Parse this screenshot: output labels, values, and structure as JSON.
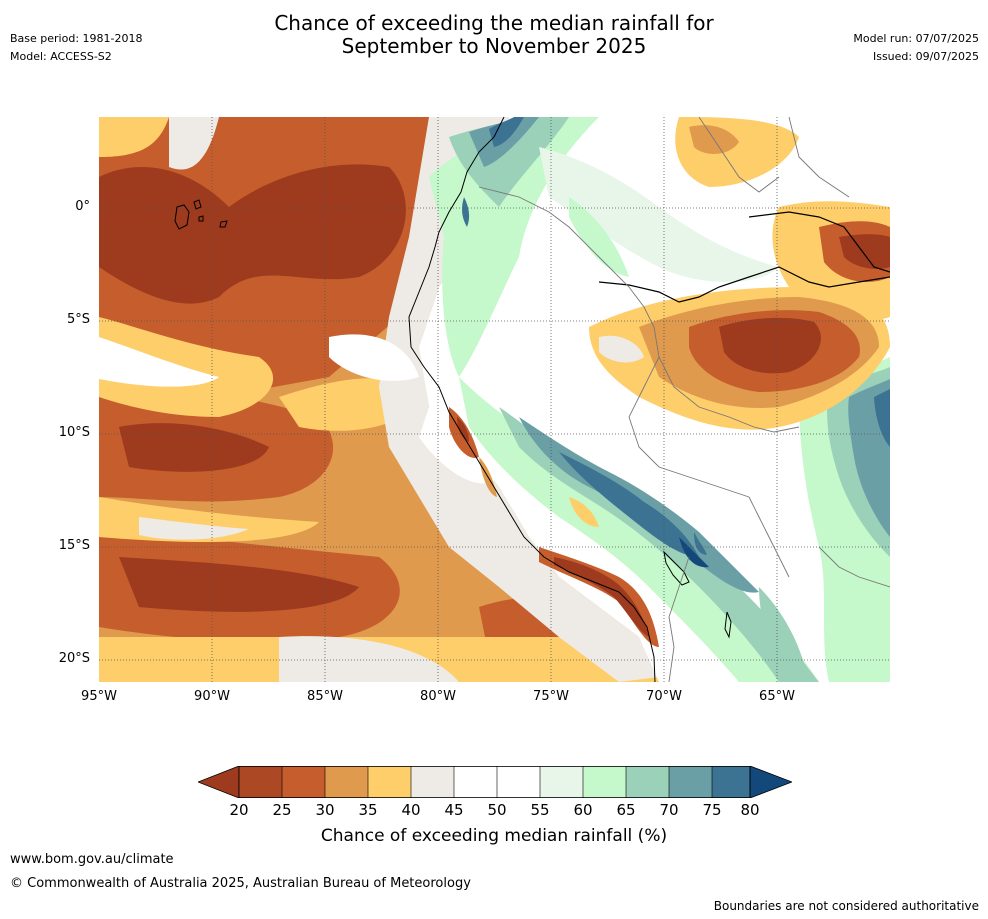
{
  "title": {
    "line1": "Chance of exceeding the median rainfall for",
    "line2": "September to November 2025"
  },
  "meta_left": {
    "base_period": "Base period: 1981-2018",
    "model": "Model: ACCESS-S2"
  },
  "meta_right": {
    "model_run": "Model run: 07/07/2025",
    "issued": "Issued: 09/07/2025"
  },
  "map": {
    "lat_labels": [
      "0°",
      "5°S",
      "10°S",
      "15°S",
      "20°S"
    ],
    "lon_labels": [
      "95°W",
      "90°W",
      "85°W",
      "80°W",
      "75°W",
      "70°W",
      "65°W"
    ],
    "colors": {
      "c20_25": "#9e3a1e",
      "c25_30": "#c55e2c",
      "c30_35": "#e09a4d",
      "c35_40": "#fece6a",
      "c40_45": "#eeebe6",
      "c45_55": "#ffffff",
      "c55_60": "#e8f6ea",
      "c60_65": "#c5f8ca",
      "c65_70": "#9bd1b8",
      "c70_75": "#6a9fa5",
      "c75_80": "#3d7392",
      "above80": "#12497a"
    }
  },
  "colorbar": {
    "ticks": [
      "20",
      "25",
      "30",
      "35",
      "40",
      "45",
      "50",
      "55",
      "60",
      "65",
      "70",
      "75",
      "80"
    ],
    "label": "Chance of exceeding median rainfall (%)"
  },
  "footer": {
    "url": "www.bom.gov.au/climate",
    "copyright": "© Commonwealth of Australia 2025, Australian Bureau of Meteorology",
    "note": "Boundaries are not considered authoritative"
  }
}
